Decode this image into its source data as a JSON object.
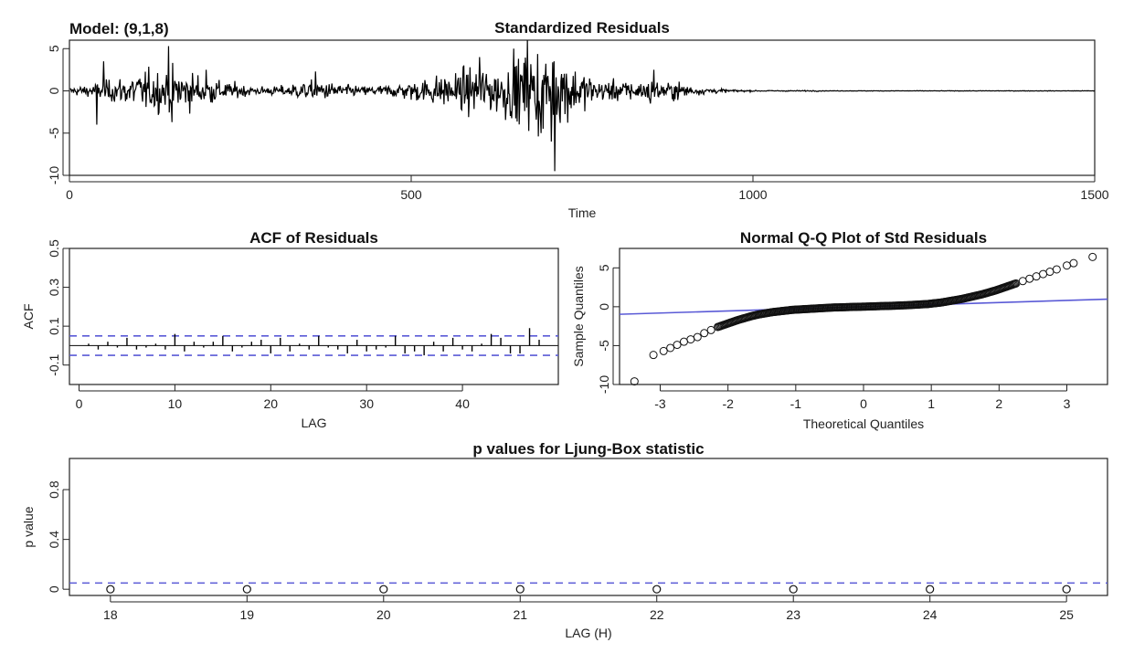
{
  "model_label": "Model: (9,1,8)",
  "colors": {
    "series": "#000000",
    "reference": "#5a5ad6",
    "frame": "#222222"
  },
  "chart_data": [
    {
      "id": "residuals",
      "type": "line",
      "title": "Standardized Residuals",
      "xlabel": "Time",
      "ylabel": "",
      "xlim": [
        0,
        1500
      ],
      "ylim": [
        -10,
        6
      ],
      "xticks": [
        0,
        500,
        1000,
        1500
      ],
      "yticks": [
        -10,
        -5,
        0,
        5
      ],
      "n": 1500,
      "bursts": [
        {
          "center": 140,
          "width": 90,
          "amp": 2.2
        },
        {
          "center": 360,
          "width": 50,
          "amp": 0.8
        },
        {
          "center": 620,
          "width": 120,
          "amp": 2.4
        },
        {
          "center": 700,
          "width": 50,
          "amp": 3.0
        },
        {
          "center": 850,
          "width": 80,
          "amp": 0.9
        }
      ],
      "series": [
        {
          "name": "",
          "marks": [
            {
              "x": 40,
              "y": -4.0
            },
            {
              "x": 50,
              "y": 3.5
            },
            {
              "x": 145,
              "y": 5.3
            },
            {
              "x": 150,
              "y": -3.7
            },
            {
              "x": 200,
              "y": 2.5
            },
            {
              "x": 360,
              "y": 2.3
            },
            {
              "x": 600,
              "y": 4.0
            },
            {
              "x": 650,
              "y": 5.0
            },
            {
              "x": 670,
              "y": 6.0
            },
            {
              "x": 690,
              "y": -5.0
            },
            {
              "x": 705,
              "y": -6.0
            },
            {
              "x": 710,
              "y": -9.5
            },
            {
              "x": 720,
              "y": 2.0
            },
            {
              "x": 850,
              "y": -1.5
            },
            {
              "x": 855,
              "y": 2.5
            }
          ]
        }
      ]
    },
    {
      "id": "acf",
      "type": "bar",
      "title": "ACF of Residuals",
      "xlabel": "LAG",
      "ylabel": "ACF",
      "xlim": [
        -1,
        50
      ],
      "ylim": [
        -0.2,
        0.5
      ],
      "xticks": [
        0,
        10,
        20,
        30,
        40
      ],
      "yticks": [
        -0.1,
        0.1,
        0.3,
        0.5
      ],
      "ci": [
        -0.05,
        0.05
      ],
      "x": [
        1,
        2,
        3,
        4,
        5,
        6,
        7,
        8,
        9,
        10,
        11,
        12,
        13,
        14,
        15,
        16,
        17,
        18,
        19,
        20,
        21,
        22,
        23,
        24,
        25,
        26,
        27,
        28,
        29,
        30,
        31,
        32,
        33,
        34,
        35,
        36,
        37,
        38,
        39,
        40,
        41,
        42,
        43,
        44,
        45,
        46,
        47,
        48
      ],
      "values": [
        0.01,
        -0.02,
        0.02,
        -0.01,
        0.04,
        -0.02,
        -0.01,
        0.01,
        -0.02,
        0.06,
        -0.03,
        0.02,
        -0.01,
        0.02,
        0.05,
        -0.03,
        -0.01,
        0.02,
        0.03,
        -0.04,
        0.04,
        -0.03,
        0.01,
        -0.02,
        0.05,
        -0.01,
        -0.02,
        -0.04,
        0.03,
        -0.03,
        -0.02,
        -0.01,
        0.05,
        -0.04,
        -0.03,
        -0.05,
        0.02,
        -0.03,
        0.04,
        -0.02,
        -0.03,
        0.01,
        0.06,
        0.04,
        -0.04,
        -0.04,
        0.09,
        0.03
      ]
    },
    {
      "id": "qq",
      "type": "scatter",
      "title": "Normal Q-Q Plot of Std Residuals",
      "xlabel": "Theoretical Quantiles",
      "ylabel": "Sample Quantiles",
      "xlim": [
        -3.6,
        3.6
      ],
      "ylim": [
        -10,
        7.5
      ],
      "xticks": [
        -3,
        -2,
        -1,
        0,
        1,
        2,
        3
      ],
      "yticks": [
        -10,
        -5,
        0,
        5
      ],
      "x": [
        -3.38,
        -3.1,
        -2.95,
        -2.85,
        -2.75,
        -2.65,
        -2.55,
        -2.45,
        -2.35,
        -2.25,
        -2.15,
        -2.05,
        -1.95,
        -1.85,
        -1.75,
        -1.65,
        -1.55,
        -1.45,
        -1.35,
        -1.25,
        -1.15,
        -1.05,
        -0.95,
        -0.85,
        -0.75,
        -0.65,
        -0.55,
        -0.45,
        -0.35,
        -0.25,
        -0.15,
        -0.05,
        0.05,
        0.15,
        0.25,
        0.35,
        0.45,
        0.55,
        0.65,
        0.75,
        0.85,
        0.95,
        1.05,
        1.15,
        1.25,
        1.35,
        1.45,
        1.55,
        1.65,
        1.75,
        1.85,
        1.95,
        2.05,
        2.15,
        2.25,
        2.35,
        2.45,
        2.55,
        2.65,
        2.75,
        2.85,
        3.0,
        3.1,
        3.38
      ],
      "values": [
        -9.6,
        -6.2,
        -5.7,
        -5.3,
        -4.9,
        -4.5,
        -4.2,
        -3.9,
        -3.4,
        -3.0,
        -2.6,
        -2.3,
        -2.0,
        -1.7,
        -1.45,
        -1.2,
        -1.0,
        -0.85,
        -0.7,
        -0.6,
        -0.5,
        -0.4,
        -0.35,
        -0.3,
        -0.25,
        -0.2,
        -0.15,
        -0.1,
        -0.08,
        -0.05,
        -0.02,
        0.0,
        0.02,
        0.05,
        0.08,
        0.1,
        0.13,
        0.17,
        0.2,
        0.25,
        0.3,
        0.35,
        0.45,
        0.55,
        0.7,
        0.85,
        1.0,
        1.2,
        1.4,
        1.6,
        1.85,
        2.1,
        2.4,
        2.7,
        3.0,
        3.3,
        3.6,
        3.9,
        4.2,
        4.5,
        4.8,
        5.3,
        5.6,
        6.4
      ],
      "reference_line": {
        "intercept": 0.0,
        "slope": 0.27
      }
    },
    {
      "id": "ljungbox",
      "type": "scatter",
      "title": "p values for Ljung-Box statistic",
      "xlabel": "LAG (H)",
      "ylabel": "p value",
      "xlim": [
        17.7,
        25.3
      ],
      "ylim": [
        -0.05,
        1.05
      ],
      "xticks": [
        18,
        19,
        20,
        21,
        22,
        23,
        24,
        25
      ],
      "yticks": [
        0.0,
        0.4,
        0.8
      ],
      "threshold": 0.05,
      "x": [
        18,
        19,
        20,
        21,
        22,
        23,
        24,
        25
      ],
      "values": [
        0,
        0,
        0,
        0,
        0,
        0,
        0,
        0
      ]
    }
  ]
}
